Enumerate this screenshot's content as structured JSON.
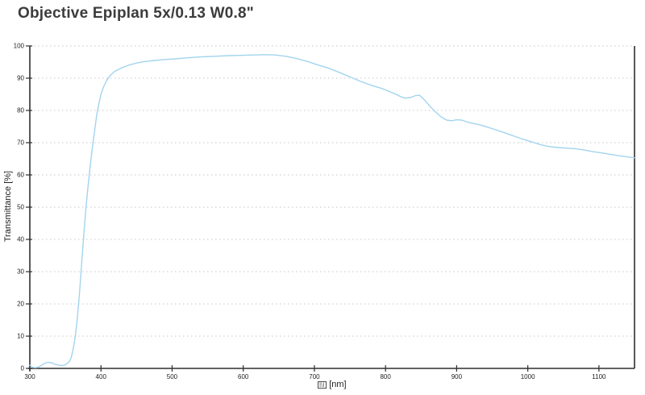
{
  "page": {
    "title": "Objective Epiplan 5x/0.13 W0.8\""
  },
  "chart_data": {
    "type": "line",
    "title": "Objective Epiplan 5x/0.13 W0.8\"",
    "grid": "horizontal-dotted",
    "legend": "none",
    "x_axis": {
      "unit": "[nm]",
      "symbol": "λ",
      "symbol_glyph_missing": true,
      "tofu_hex": [
        "03",
        "BB"
      ],
      "range": [
        300,
        1150
      ],
      "ticks": [
        300,
        400,
        500,
        600,
        700,
        800,
        900,
        1000,
        1100
      ]
    },
    "y_axis": {
      "label": "Transmittance [%]",
      "range": [
        0,
        100
      ],
      "ticks": [
        0,
        10,
        20,
        30,
        40,
        50,
        60,
        70,
        80,
        90,
        100
      ]
    },
    "series": [
      {
        "name": "transmittance",
        "color": "#a2d4ee",
        "points": [
          [
            300,
            1.0
          ],
          [
            304,
            0.3
          ],
          [
            308,
            0.2
          ],
          [
            312,
            0.4
          ],
          [
            316,
            0.9
          ],
          [
            320,
            1.5
          ],
          [
            325,
            1.9
          ],
          [
            330,
            1.8
          ],
          [
            335,
            1.3
          ],
          [
            340,
            1.0
          ],
          [
            345,
            0.9
          ],
          [
            350,
            1.1
          ],
          [
            355,
            2.0
          ],
          [
            358,
            3.2
          ],
          [
            361,
            6
          ],
          [
            364,
            10
          ],
          [
            367,
            16
          ],
          [
            370,
            24
          ],
          [
            373,
            33
          ],
          [
            376,
            42
          ],
          [
            379,
            50
          ],
          [
            382,
            57
          ],
          [
            385,
            63
          ],
          [
            388,
            68.5
          ],
          [
            391,
            73.5
          ],
          [
            394,
            78.5
          ],
          [
            397,
            82
          ],
          [
            400,
            85
          ],
          [
            404,
            87.5
          ],
          [
            408,
            89.3
          ],
          [
            412,
            90.6
          ],
          [
            416,
            91.5
          ],
          [
            420,
            92.2
          ],
          [
            430,
            93.3
          ],
          [
            440,
            94.1
          ],
          [
            450,
            94.7
          ],
          [
            460,
            95.1
          ],
          [
            475,
            95.5
          ],
          [
            490,
            95.8
          ],
          [
            505,
            96.0
          ],
          [
            520,
            96.3
          ],
          [
            540,
            96.6
          ],
          [
            560,
            96.8
          ],
          [
            580,
            97.0
          ],
          [
            600,
            97.1
          ],
          [
            615,
            97.2
          ],
          [
            630,
            97.3
          ],
          [
            645,
            97.2
          ],
          [
            660,
            96.8
          ],
          [
            675,
            96.1
          ],
          [
            690,
            95.2
          ],
          [
            705,
            94.1
          ],
          [
            720,
            93.1
          ],
          [
            735,
            91.8
          ],
          [
            750,
            90.4
          ],
          [
            765,
            89.0
          ],
          [
            780,
            87.8
          ],
          [
            795,
            86.8
          ],
          [
            805,
            85.9
          ],
          [
            815,
            85.0
          ],
          [
            822,
            84.2
          ],
          [
            828,
            83.8
          ],
          [
            835,
            84.0
          ],
          [
            842,
            84.6
          ],
          [
            848,
            84.7
          ],
          [
            855,
            83.2
          ],
          [
            862,
            81.4
          ],
          [
            870,
            79.6
          ],
          [
            878,
            78.0
          ],
          [
            886,
            77.0
          ],
          [
            893,
            76.8
          ],
          [
            900,
            77.1
          ],
          [
            907,
            77.0
          ],
          [
            915,
            76.4
          ],
          [
            925,
            75.9
          ],
          [
            935,
            75.4
          ],
          [
            945,
            74.7
          ],
          [
            955,
            74.0
          ],
          [
            967,
            73.1
          ],
          [
            980,
            72.1
          ],
          [
            993,
            71.1
          ],
          [
            1006,
            70.2
          ],
          [
            1018,
            69.4
          ],
          [
            1030,
            68.8
          ],
          [
            1042,
            68.5
          ],
          [
            1055,
            68.3
          ],
          [
            1068,
            68.1
          ],
          [
            1080,
            67.7
          ],
          [
            1092,
            67.2
          ],
          [
            1105,
            66.8
          ],
          [
            1118,
            66.3
          ],
          [
            1130,
            65.9
          ],
          [
            1140,
            65.6
          ],
          [
            1150,
            65.3
          ]
        ]
      }
    ]
  }
}
